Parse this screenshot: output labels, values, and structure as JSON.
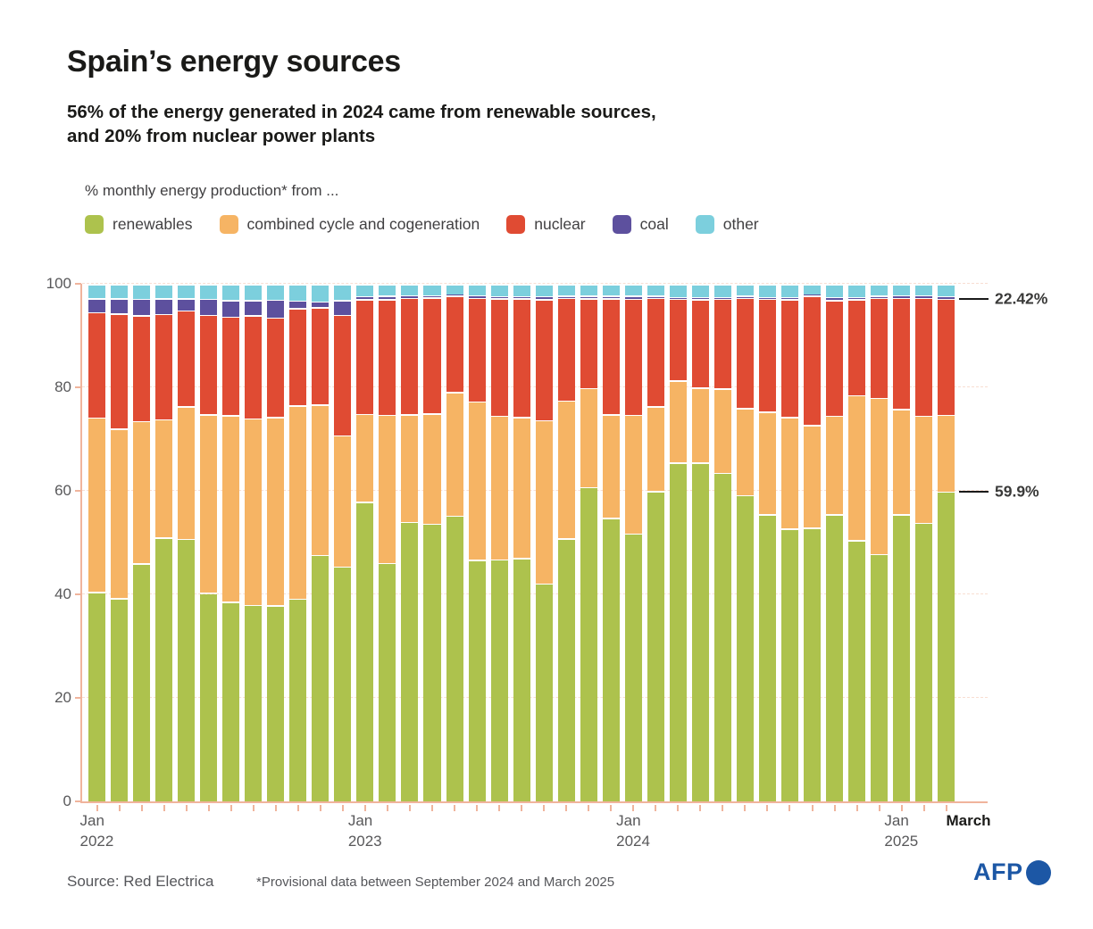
{
  "header": {
    "title": "Spain’s energy sources",
    "subtitle_line1": "56% of the energy generated in 2024 came from renewable sources,",
    "subtitle_line2": "and 20% from nuclear power plants"
  },
  "legend": {
    "label": "% monthly energy production* from ..."
  },
  "footer": {
    "source": "Source: Red Electrica",
    "footnote": "*Provisional data between September 2024 and March 2025",
    "afp": "AFP"
  },
  "colors": {
    "renewables": "#adc24d",
    "combined_cycle": "#f6b464",
    "nuclear": "#e04b33",
    "coal": "#5d509e",
    "other": "#7ccfdd",
    "axis": "#f0b49c",
    "gridline": "#f8ded2",
    "annotation_line": "#1a1a1a",
    "afp_blue": "#1c57a5"
  },
  "chart_data": {
    "type": "bar",
    "stacked": true,
    "title": "% monthly energy production from each source, Jan 2022 - Mar 2025",
    "xlabel": "",
    "ylabel": "",
    "ylim": [
      0,
      100
    ],
    "yticks": [
      0,
      20,
      40,
      60,
      80,
      100
    ],
    "grid": true,
    "legend_position": "top",
    "categories": [
      "Jan 2022",
      "Feb 2022",
      "Mar 2022",
      "Apr 2022",
      "May 2022",
      "Jun 2022",
      "Jul 2022",
      "Aug 2022",
      "Sep 2022",
      "Oct 2022",
      "Nov 2022",
      "Dec 2022",
      "Jan 2023",
      "Feb 2023",
      "Mar 2023",
      "Apr 2023",
      "May 2023",
      "Jun 2023",
      "Jul 2023",
      "Aug 2023",
      "Sep 2023",
      "Oct 2023",
      "Nov 2023",
      "Dec 2023",
      "Jan 2024",
      "Feb 2024",
      "Mar 2024",
      "Apr 2024",
      "May 2024",
      "Jun 2024",
      "Jul 2024",
      "Aug 2024",
      "Sep 2024",
      "Oct 2024",
      "Nov 2024",
      "Dec 2024",
      "Jan 2025",
      "Feb 2025",
      "Mar 2025"
    ],
    "series": [
      {
        "key": "renewables",
        "name": "renewables",
        "color": "#adc24d",
        "values": [
          40.5,
          39.3,
          46,
          51,
          50.7,
          40.3,
          38.6,
          38,
          37.9,
          39.2,
          47.6,
          45.4,
          57.9,
          46.1,
          54,
          53.7,
          55.2,
          46.7,
          46.8,
          47,
          42.1,
          50.8,
          60.7,
          54.8,
          51.8,
          60,
          65.5,
          65.5,
          63.5,
          59.2,
          55.5,
          52.7,
          52.9,
          55.5,
          50.5,
          47.8,
          55.5,
          53.8,
          59.9
        ]
      },
      {
        "key": "combined-cycle",
        "name": "combined cycle and cogeneration",
        "color": "#f6b464",
        "values": [
          33.7,
          32.7,
          27.5,
          22.8,
          25.6,
          34.5,
          36,
          36,
          36.4,
          37.3,
          29.1,
          25.3,
          17,
          28.6,
          20.8,
          21.3,
          23.9,
          30.6,
          27.7,
          27.3,
          31.6,
          26.7,
          19.2,
          20,
          22.9,
          16.3,
          15.8,
          14.5,
          16.3,
          16.8,
          19.8,
          21.6,
          19.8,
          19,
          28,
          30.2,
          20.3,
          20.7,
          14.78
        ]
      },
      {
        "key": "nuclear",
        "name": "nuclear",
        "color": "#e04b33",
        "values": [
          20.3,
          22.3,
          20.4,
          20.4,
          18.6,
          19.2,
          19.1,
          19.9,
          19.2,
          18.8,
          18.8,
          23.3,
          22.1,
          22.3,
          22.5,
          22.4,
          18.6,
          20,
          22.7,
          22.9,
          23.3,
          19.8,
          17.3,
          22.4,
          22.4,
          21,
          15.8,
          17,
          17.3,
          21.3,
          21.8,
          22.7,
          25,
          22.4,
          18.5,
          19.3,
          21.5,
          22.8,
          22.42
        ]
      },
      {
        "key": "coal",
        "name": "coal",
        "color": "#5d509e",
        "values": [
          2.7,
          2.9,
          3.2,
          3,
          2.3,
          3.1,
          3.2,
          3,
          3.4,
          1.5,
          1.1,
          2.9,
          0.6,
          0.7,
          0.5,
          0.4,
          0.3,
          0.5,
          0.4,
          0.4,
          0.6,
          0.4,
          0.5,
          0.5,
          0.6,
          0.4,
          0.4,
          0.5,
          0.4,
          0.4,
          0.4,
          0.5,
          0.3,
          0.6,
          0.5,
          0.4,
          0.5,
          0.5,
          0.5
        ]
      },
      {
        "key": "other",
        "name": "other",
        "color": "#7ccfdd",
        "values": [
          2.8,
          2.8,
          2.9,
          2.8,
          2.8,
          2.9,
          3.1,
          3.1,
          3.1,
          3.2,
          3.4,
          3.1,
          2.4,
          2.3,
          2.2,
          2.2,
          2,
          2.2,
          2.4,
          2.4,
          2.4,
          2.3,
          2.3,
          2.3,
          2.3,
          2.3,
          2.5,
          2.5,
          2.5,
          2.3,
          2.5,
          2.5,
          2,
          2.5,
          2.5,
          2.3,
          2.2,
          2.2,
          2.4
        ]
      }
    ],
    "xaxis_labels": [
      {
        "line1": "Jan",
        "line2": "2022",
        "col": 0,
        "dx": -17,
        "bold": false
      },
      {
        "line1": "Jan",
        "line2": "2023",
        "col": 12,
        "dx": -17,
        "bold": false
      },
      {
        "line1": "Jan",
        "line2": "2024",
        "col": 24,
        "dx": -17,
        "bold": false
      },
      {
        "line1": "Jan",
        "line2": "2025",
        "col": 36,
        "dx": -17,
        "bold": false
      },
      {
        "line1": "March",
        "line2": "",
        "col": 38,
        "dx": 2,
        "bold": true
      }
    ],
    "annotations": [
      {
        "text": "22.42%",
        "y_value": 97.1
      },
      {
        "text": "59.9%",
        "y_value": 59.9
      }
    ]
  }
}
